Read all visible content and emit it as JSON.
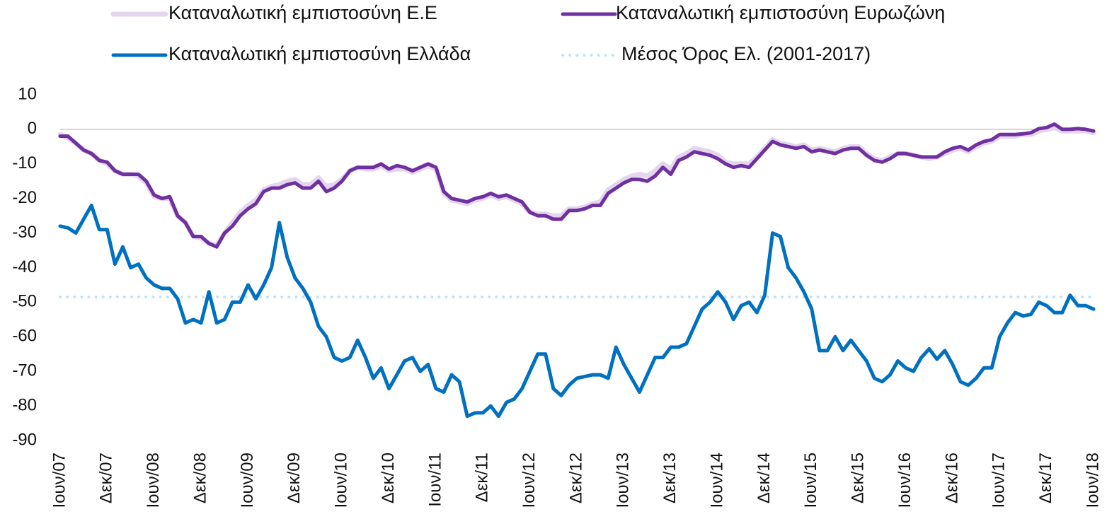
{
  "chart_data": {
    "type": "line",
    "categories": [
      "Ιουν/07",
      null,
      null,
      null,
      null,
      null,
      "Δεκ/07",
      null,
      null,
      null,
      null,
      null,
      "Ιουν/08",
      null,
      null,
      null,
      null,
      null,
      "Δεκ/08",
      null,
      null,
      null,
      null,
      null,
      "Ιουν/09",
      null,
      null,
      null,
      null,
      null,
      "Δεκ/09",
      null,
      null,
      null,
      null,
      null,
      "Ιουν/10",
      null,
      null,
      null,
      null,
      null,
      "Δεκ/10",
      null,
      null,
      null,
      null,
      null,
      "Ιουν/11",
      null,
      null,
      null,
      null,
      null,
      "Δεκ/11",
      null,
      null,
      null,
      null,
      null,
      "Ιουν/12",
      null,
      null,
      null,
      null,
      null,
      "Δεκ/12",
      null,
      null,
      null,
      null,
      null,
      "Ιουν/13",
      null,
      null,
      null,
      null,
      null,
      "Δεκ/13",
      null,
      null,
      null,
      null,
      null,
      "Ιουν/14",
      null,
      null,
      null,
      null,
      null,
      "Δεκ/14",
      null,
      null,
      null,
      null,
      null,
      "Ιουν/15",
      null,
      null,
      null,
      null,
      null,
      "Δεκ/15",
      null,
      null,
      null,
      null,
      null,
      "Ιουν/16",
      null,
      null,
      null,
      null,
      null,
      "Δεκ/16",
      null,
      null,
      null,
      null,
      null,
      "Ιουν/17",
      null,
      null,
      null,
      null,
      null,
      "Δεκ/17",
      null,
      null,
      null,
      null,
      null,
      "Ιουν/18"
    ],
    "series": [
      {
        "name": "Καταναλωτική εμπιστοσύνη Ε.Ε",
        "color": "#e4d6ef",
        "width": 7,
        "dashed": false,
        "values": [
          -1.5,
          -2.5,
          -4,
          -6,
          -7,
          -9,
          -10,
          -12,
          -13,
          -13,
          -13.5,
          -15.5,
          -19.5,
          -20,
          -20,
          -25,
          -27,
          -31,
          -31.5,
          -33,
          -33.5,
          -30,
          -27,
          -24,
          -22,
          -20.5,
          -17.5,
          -16.5,
          -16,
          -15,
          -14.5,
          -16,
          -16,
          -14,
          -16.5,
          -16,
          -14.5,
          -12,
          -11,
          -11.5,
          -11.5,
          -10.5,
          -12,
          -11.5,
          -11.5,
          -12.5,
          -11.5,
          -10.5,
          -11.5,
          -18.5,
          -20.5,
          -21,
          -21.5,
          -20.5,
          -20,
          -19,
          -20,
          -19.5,
          -20.5,
          -21.5,
          -24,
          -24.5,
          -24.5,
          -25,
          -25,
          -23,
          -23,
          -22.5,
          -21.5,
          -21,
          -17.5,
          -16,
          -14.5,
          -13.5,
          -13,
          -13.5,
          -12,
          -10,
          -11.5,
          -8,
          -7,
          -5.5,
          -6,
          -6.5,
          -7.5,
          -9.5,
          -10,
          -10,
          -10,
          -8,
          -5.5,
          -3,
          -4,
          -4.5,
          -5,
          -4.5,
          -6,
          -5.5,
          -6,
          -6.5,
          -5.5,
          -5,
          -5,
          -7,
          -8.5,
          -9,
          -8,
          -7,
          -7,
          -7.5,
          -8,
          -8.5,
          -8,
          -7,
          -6,
          -5.5,
          -6.5,
          -5,
          -4,
          -3.5,
          -2,
          -2,
          -2,
          -1.5,
          -1.5,
          -0.5,
          0,
          0.5,
          -0.5,
          -0.5,
          -0.5,
          -0.5,
          -1
        ]
      },
      {
        "name": "Καταναλωτική εμπιστοσύνη Ευρωζώνη",
        "color": "#7030a0",
        "width": 5,
        "dashed": false,
        "values": [
          -2,
          -2,
          -4,
          -6,
          -7,
          -9,
          -9.5,
          -12,
          -13,
          -13,
          -13,
          -15,
          -19,
          -20,
          -19.5,
          -25,
          -27,
          -31,
          -31,
          -33,
          -34,
          -30,
          -28,
          -25,
          -23,
          -21.5,
          -18,
          -17,
          -17,
          -16,
          -15.5,
          -17,
          -17,
          -15,
          -18,
          -17,
          -15,
          -12,
          -11,
          -11,
          -11,
          -10,
          -11.5,
          -10.5,
          -11,
          -12,
          -11,
          -10,
          -11,
          -18,
          -20,
          -20.5,
          -21,
          -20,
          -19.5,
          -18.5,
          -19.5,
          -19,
          -20,
          -21,
          -24,
          -25,
          -25,
          -26,
          -26,
          -23.5,
          -23.5,
          -23,
          -22,
          -22,
          -18.5,
          -17,
          -15.5,
          -14.5,
          -14.5,
          -15,
          -13.5,
          -11,
          -13,
          -9,
          -8,
          -6.5,
          -7,
          -7.5,
          -8.5,
          -10,
          -11,
          -10.5,
          -11,
          -8.5,
          -6,
          -3.5,
          -4.5,
          -5,
          -5.5,
          -5,
          -6.5,
          -6,
          -6.5,
          -7,
          -6,
          -5.5,
          -5.5,
          -7.5,
          -9,
          -9.5,
          -8.5,
          -7,
          -7,
          -7.5,
          -8,
          -8,
          -8,
          -6.5,
          -5.5,
          -5,
          -6,
          -4.5,
          -3.5,
          -3,
          -1.5,
          -1.5,
          -1.5,
          -1.3,
          -1,
          0.2,
          0.5,
          1.5,
          0,
          0,
          0.2,
          0,
          -0.5
        ]
      },
      {
        "name": "Καταναλωτική εμπιστοσύνη Ελλάδα",
        "color": "#0070c0",
        "width": 5,
        "dashed": false,
        "values": [
          -28,
          -28.5,
          -30,
          -26,
          -22,
          -29,
          -29,
          -39,
          -34,
          -40,
          -39,
          -43,
          -45,
          -46,
          -46,
          -49,
          -56,
          -55,
          -56,
          -47,
          -56,
          -55,
          -50,
          -50,
          -45,
          -49,
          -45,
          -40,
          -27,
          -37,
          -43,
          -46,
          -50,
          -57,
          -60,
          -66,
          -67,
          -66,
          -61,
          -66,
          -72,
          -69,
          -75,
          -71,
          -67,
          -66,
          -70,
          -68,
          -75,
          -76,
          -71,
          -73,
          -83,
          -82,
          -82,
          -80,
          -83,
          -79,
          -78,
          -75,
          -70,
          -65,
          -65,
          -75,
          -77,
          -74,
          -72,
          -71.5,
          -71,
          -71,
          -72,
          -63,
          -68,
          -72,
          -76,
          -71,
          -66,
          -66,
          -63,
          -63,
          -62,
          -57,
          -52,
          -50,
          -47,
          -50,
          -55,
          -51,
          -50,
          -53,
          -48,
          -30,
          -31,
          -40,
          -43,
          -47,
          -52,
          -64,
          -64,
          -60,
          -64,
          -61,
          -64,
          -67,
          -72,
          -73,
          -71,
          -67,
          -69,
          -70,
          -66,
          -63.5,
          -66.5,
          -64,
          -68,
          -73,
          -74,
          -72,
          -69,
          -69,
          -60,
          -56,
          -53,
          -54,
          -53.5,
          -50,
          -51,
          -53,
          -53,
          -48,
          -51,
          -51,
          -52
        ]
      },
      {
        "name": "Μέσος Όρος Ελ. (2001-2017)",
        "color": "#bfe3f2",
        "width": 4,
        "dashed": true,
        "values": [
          -48.5,
          -48.5,
          -48.5,
          -48.5,
          -48.5,
          -48.5,
          -48.5,
          -48.5,
          -48.5,
          -48.5,
          -48.5,
          -48.5,
          -48.5,
          -48.5,
          -48.5,
          -48.5,
          -48.5,
          -48.5,
          -48.5,
          -48.5,
          -48.5,
          -48.5,
          -48.5,
          -48.5,
          -48.5,
          -48.5,
          -48.5,
          -48.5,
          -48.5,
          -48.5,
          -48.5,
          -48.5,
          -48.5,
          -48.5,
          -48.5,
          -48.5,
          -48.5,
          -48.5,
          -48.5,
          -48.5,
          -48.5,
          -48.5,
          -48.5,
          -48.5,
          -48.5,
          -48.5,
          -48.5,
          -48.5,
          -48.5,
          -48.5,
          -48.5,
          -48.5,
          -48.5,
          -48.5,
          -48.5,
          -48.5,
          -48.5,
          -48.5,
          -48.5,
          -48.5,
          -48.5,
          -48.5,
          -48.5,
          -48.5,
          -48.5,
          -48.5,
          -48.5,
          -48.5,
          -48.5,
          -48.5,
          -48.5,
          -48.5,
          -48.5,
          -48.5,
          -48.5,
          -48.5,
          -48.5,
          -48.5,
          -48.5,
          -48.5,
          -48.5,
          -48.5,
          -48.5,
          -48.5,
          -48.5,
          -48.5,
          -48.5,
          -48.5,
          -48.5,
          -48.5,
          -48.5,
          -48.5,
          -48.5,
          -48.5,
          -48.5,
          -48.5,
          -48.5,
          -48.5,
          -48.5,
          -48.5,
          -48.5,
          -48.5,
          -48.5,
          -48.5,
          -48.5,
          -48.5,
          -48.5,
          -48.5,
          -48.5,
          -48.5,
          -48.5,
          -48.5,
          -48.5,
          -48.5,
          -48.5,
          -48.5,
          -48.5,
          -48.5,
          -48.5,
          -48.5,
          -48.5,
          -48.5,
          -48.5,
          -48.5,
          -48.5,
          -48.5,
          -48.5,
          -48.5,
          -48.5,
          -48.5,
          -48.5,
          -48.5,
          -48.5
        ]
      }
    ],
    "ylim": [
      -90,
      10
    ],
    "yticks": [
      10,
      0,
      -10,
      -20,
      -30,
      -40,
      -50,
      -60,
      -70,
      -80,
      -90
    ],
    "grid": false
  }
}
